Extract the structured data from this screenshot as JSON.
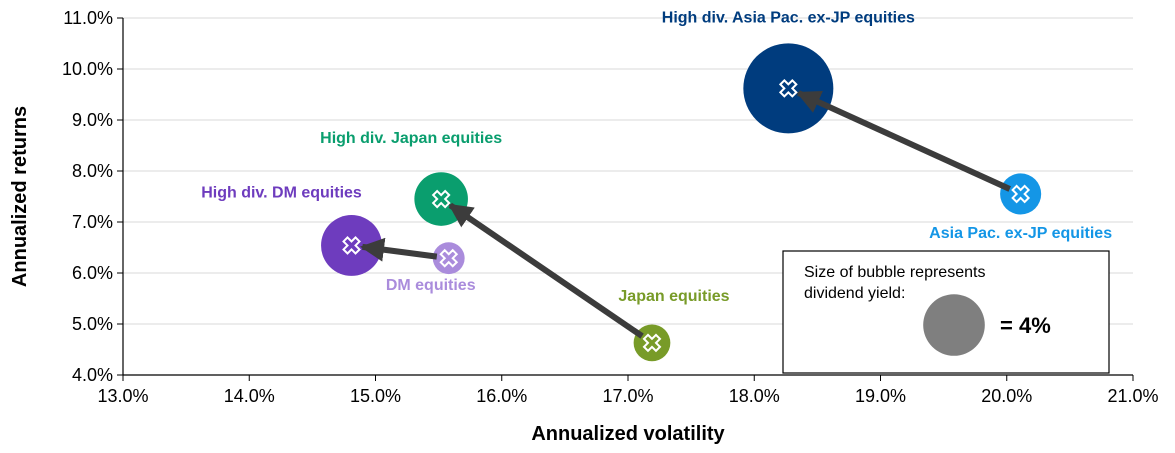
{
  "chart_data": {
    "type": "scatter",
    "title": "",
    "xlabel": "Annualized volatility",
    "ylabel": "Annualized returns",
    "xlim": [
      13.0,
      21.0
    ],
    "ylim": [
      4.0,
      11.0
    ],
    "x_ticks": [
      "13.0%",
      "14.0%",
      "15.0%",
      "16.0%",
      "17.0%",
      "18.0%",
      "19.0%",
      "20.0%",
      "21.0%"
    ],
    "y_ticks": [
      "4.0%",
      "5.0%",
      "6.0%",
      "7.0%",
      "8.0%",
      "9.0%",
      "10.0%",
      "11.0%"
    ],
    "grid": "horizontal",
    "points": [
      {
        "name": "High div. Asia Pac. ex-JP equities",
        "x": 18.27,
        "y": 9.62,
        "dividend_yield": 4.8,
        "color": "#003c7e"
      },
      {
        "name": "Asia Pac. ex-JP equities",
        "x": 20.11,
        "y": 7.55,
        "dividend_yield": 1.0,
        "color": "#1496e6"
      },
      {
        "name": "High div. Japan equities",
        "x": 15.52,
        "y": 7.45,
        "dividend_yield": 1.7,
        "color": "#0a9e6e"
      },
      {
        "name": "Japan equities",
        "x": 17.19,
        "y": 4.63,
        "dividend_yield": 0.8,
        "color": "#789b28"
      },
      {
        "name": "High div. DM equities",
        "x": 14.81,
        "y": 6.54,
        "dividend_yield": 2.2,
        "color": "#6e3cbe"
      },
      {
        "name": "DM equities",
        "x": 15.58,
        "y": 6.29,
        "dividend_yield": 0.6,
        "color": "#aa8cdc"
      }
    ],
    "arrows": [
      {
        "from": "Asia Pac. ex-JP equities",
        "to": "High div. Asia Pac. ex-JP equities"
      },
      {
        "from": "Japan equities",
        "to": "High div. Japan equities"
      },
      {
        "from": "DM equities",
        "to": "High div. DM equities"
      }
    ],
    "legend": {
      "text_line1": "Size of bubble represents",
      "text_line2": "dividend yield:",
      "value_label": "= 4%",
      "reference_yield": 4,
      "color": "#7f7f7f",
      "placement": "bottom-right"
    }
  }
}
